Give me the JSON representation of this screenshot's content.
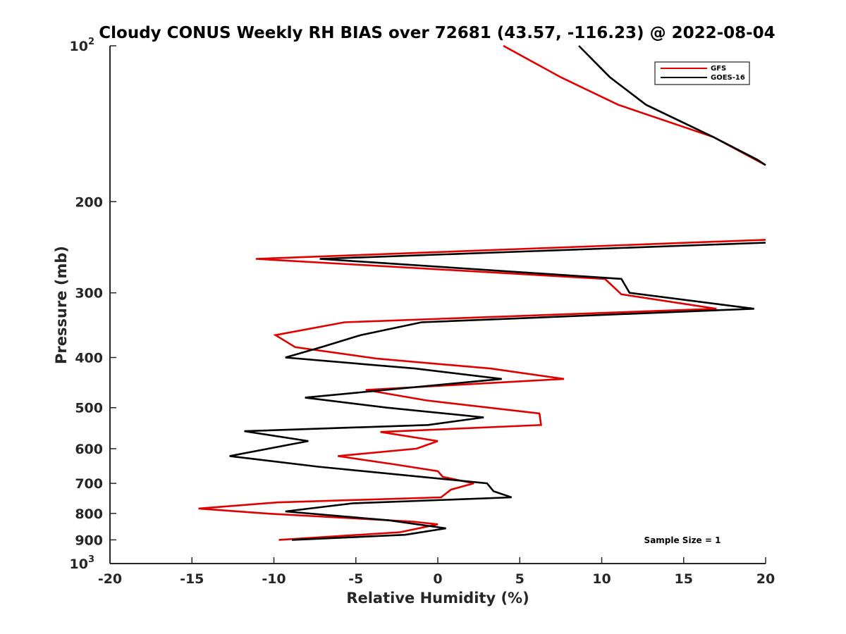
{
  "chart_data": {
    "type": "line",
    "title": "Cloudy CONUS Weekly RH BIAS over 72681 (43.57, -116.23) @ 2022-08-04",
    "xlabel": "Relative Humidity (%)",
    "ylabel": "Pressure (mb)",
    "xlim": [
      -20,
      20
    ],
    "ylim": [
      100,
      1000
    ],
    "y_scale": "log",
    "y_reversed": true,
    "grid": false,
    "legend_position": "top-right",
    "x_ticks": [
      {
        "value": -20,
        "label": "-20"
      },
      {
        "value": -15,
        "label": "-15"
      },
      {
        "value": -10,
        "label": "-10"
      },
      {
        "value": -5,
        "label": "-5"
      },
      {
        "value": 0,
        "label": "0"
      },
      {
        "value": 5,
        "label": "5"
      },
      {
        "value": 10,
        "label": "10"
      },
      {
        "value": 15,
        "label": "15"
      },
      {
        "value": 20,
        "label": "20"
      }
    ],
    "y_ticks": [
      {
        "value": 100,
        "label": "10",
        "sup": "2"
      },
      {
        "value": 200,
        "label": "200"
      },
      {
        "value": 300,
        "label": "300"
      },
      {
        "value": 400,
        "label": "400"
      },
      {
        "value": 500,
        "label": "500"
      },
      {
        "value": 600,
        "label": "600"
      },
      {
        "value": 700,
        "label": "700"
      },
      {
        "value": 800,
        "label": "800"
      },
      {
        "value": 900,
        "label": "900"
      },
      {
        "value": 1000,
        "label": "10",
        "sup": "3"
      }
    ],
    "series": [
      {
        "name": "GFS",
        "color": "#e00000",
        "points": [
          [
            4.0,
            100
          ],
          [
            7.5,
            115
          ],
          [
            11.0,
            130
          ],
          [
            16.8,
            150
          ],
          [
            20.0,
            170
          ],
          [
            null,
            null
          ],
          [
            20.0,
            237
          ],
          [
            -11.1,
            258
          ],
          [
            10.2,
            282
          ],
          [
            11.2,
            302
          ],
          [
            17.0,
            322
          ],
          [
            -5.7,
            342
          ],
          [
            -9.9,
            362
          ],
          [
            -8.7,
            382
          ],
          [
            -3.7,
            402
          ],
          [
            3.2,
            420
          ],
          [
            7.7,
            440
          ],
          [
            -4.4,
            462
          ],
          [
            -0.7,
            484
          ],
          [
            6.2,
            513
          ],
          [
            6.3,
            540
          ],
          [
            -3.5,
            557
          ],
          [
            0.0,
            580
          ],
          [
            -1.3,
            600
          ],
          [
            -6.1,
            620
          ],
          [
            -2.7,
            643
          ],
          [
            0.0,
            663
          ],
          [
            0.3,
            680
          ],
          [
            2.2,
            700
          ],
          [
            0.8,
            720
          ],
          [
            0.2,
            745
          ],
          [
            -9.8,
            762
          ],
          [
            -14.6,
            783
          ],
          [
            -10.3,
            801
          ],
          [
            -1.5,
            830
          ],
          [
            0.0,
            840
          ],
          [
            -2.3,
            870
          ],
          [
            -9.7,
            900
          ]
        ]
      },
      {
        "name": "GOES-16",
        "color": "#000000",
        "points": [
          [
            8.6,
            100
          ],
          [
            10.5,
            115
          ],
          [
            12.7,
            130
          ],
          [
            16.8,
            150
          ],
          [
            19.5,
            166
          ],
          [
            20.0,
            170
          ],
          [
            null,
            null
          ],
          [
            20.0,
            240
          ],
          [
            -7.2,
            258
          ],
          [
            11.2,
            282
          ],
          [
            11.7,
            300
          ],
          [
            19.3,
            322
          ],
          [
            -1.0,
            342
          ],
          [
            -4.7,
            362
          ],
          [
            -7.1,
            382
          ],
          [
            -9.3,
            400
          ],
          [
            -1.4,
            420
          ],
          [
            3.9,
            440
          ],
          [
            -8.1,
            478
          ],
          [
            -3.1,
            500
          ],
          [
            2.8,
            522
          ],
          [
            -0.6,
            540
          ],
          [
            -11.8,
            555
          ],
          [
            -7.9,
            580
          ],
          [
            -12.7,
            620
          ],
          [
            -7.3,
            650
          ],
          [
            3.0,
            700
          ],
          [
            3.4,
            725
          ],
          [
            4.5,
            745
          ],
          [
            -5.2,
            765
          ],
          [
            -9.3,
            793
          ],
          [
            -3.0,
            825
          ],
          [
            0.5,
            855
          ],
          [
            -2.0,
            880
          ],
          [
            -8.9,
            900
          ]
        ]
      }
    ],
    "annotation": "Sample Size = 1"
  }
}
